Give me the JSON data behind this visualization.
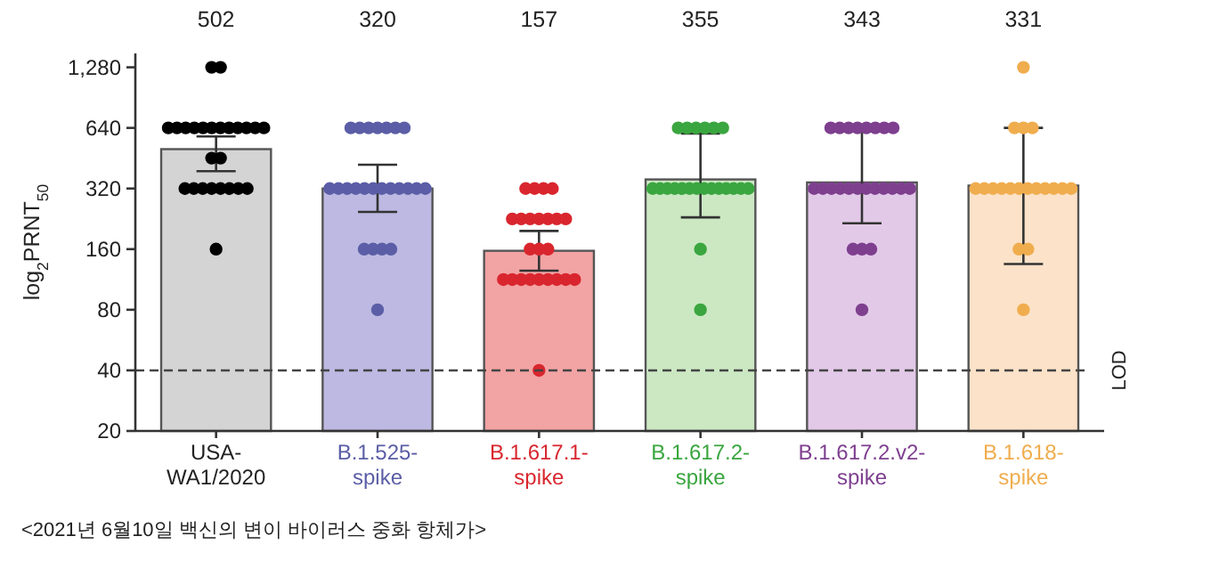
{
  "chart_data": {
    "type": "bar",
    "ylabel": "log$_{2}$PRNT$_{50}$",
    "categories": [
      "USA-WA1/2020",
      "B.1.525-spike",
      "B.1.617.1-spike",
      "B.1.617.2-spike",
      "B.1.617.2.v2-spike",
      "B.1.618-spike"
    ],
    "series": [
      {
        "colors": [
          "#d4d4d4",
          "#bdb9e2",
          "#f2a3a3",
          "#cbe8c3",
          "#e3c9e8",
          "#fbe2c8"
        ],
        "values": [
          502,
          320,
          157,
          355,
          343,
          331
        ],
        "errors": [
          [
            390,
            580
          ],
          [
            245,
            420
          ],
          [
            125,
            197
          ],
          [
            230,
            600
          ],
          [
            215,
            640
          ],
          [
            135,
            640
          ]
        ]
      },
      {
        "type": "scatter",
        "color": "#000000",
        "x": [
          "USA-WA1/2020",
          "USA-WA1/2020",
          "USA-WA1/2020",
          "USA-WA1/2020",
          "USA-WA1/2020",
          "USA-WA1/2020",
          "USA-WA1/2020",
          "USA-WA1/2020",
          "USA-WA1/2020",
          "USA-WA1/2020",
          "USA-WA1/2020",
          "USA-WA1/2020",
          "USA-WA1/2020",
          "USA-WA1/2020",
          "USA-WA1/2020",
          "USA-WA1/2020",
          "USA-WA1/2020",
          "USA-WA1/2020",
          "USA-WA1/2020",
          "USA-WA1/2020",
          "USA-WA1/2020",
          "USA-WA1/2020",
          "USA-WA1/2020",
          "USA-WA1/2020",
          "USA-WA1/2020"
        ],
        "values": [
          1280,
          1280,
          640,
          640,
          640,
          640,
          640,
          640,
          640,
          640,
          640,
          640,
          640,
          640,
          453,
          453,
          320,
          320,
          320,
          320,
          320,
          320,
          320,
          320,
          160
        ]
      },
      {
        "type": "scatter",
        "color": "#5b5ea6",
        "x": [
          "B.1.525-spike",
          "B.1.525-spike",
          "B.1.525-spike",
          "B.1.525-spike",
          "B.1.525-spike",
          "B.1.525-spike",
          "B.1.525-spike",
          "B.1.525-spike",
          "B.1.525-spike",
          "B.1.525-spike",
          "B.1.525-spike",
          "B.1.525-spike",
          "B.1.525-spike",
          "B.1.525-spike",
          "B.1.525-spike",
          "B.1.525-spike",
          "B.1.525-spike",
          "B.1.525-spike",
          "B.1.525-spike",
          "B.1.525-spike",
          "B.1.525-spike",
          "B.1.525-spike",
          "B.1.525-spike",
          "B.1.525-spike"
        ],
        "values": [
          640,
          640,
          640,
          640,
          640,
          640,
          640,
          320,
          320,
          320,
          320,
          320,
          320,
          320,
          320,
          320,
          320,
          320,
          320,
          160,
          160,
          160,
          160,
          80
        ]
      },
      {
        "type": "scatter",
        "color": "#d9262e",
        "x": [
          "B.1.617.1-spike",
          "B.1.617.1-spike",
          "B.1.617.1-spike",
          "B.1.617.1-spike",
          "B.1.617.1-spike",
          "B.1.617.1-spike",
          "B.1.617.1-spike",
          "B.1.617.1-spike",
          "B.1.617.1-spike",
          "B.1.617.1-spike",
          "B.1.617.1-spike",
          "B.1.617.1-spike",
          "B.1.617.1-spike",
          "B.1.617.1-spike",
          "B.1.617.1-spike",
          "B.1.617.1-spike",
          "B.1.617.1-spike",
          "B.1.617.1-spike",
          "B.1.617.1-spike",
          "B.1.617.1-spike",
          "B.1.617.1-spike",
          "B.1.617.1-spike",
          "B.1.617.1-spike",
          "B.1.617.1-spike"
        ],
        "values": [
          320,
          320,
          320,
          320,
          226,
          226,
          226,
          226,
          226,
          226,
          226,
          160,
          160,
          160,
          113,
          113,
          113,
          113,
          113,
          113,
          113,
          113,
          113,
          40
        ]
      },
      {
        "type": "scatter",
        "color": "#3aa63f",
        "x": [
          "B.1.617.2-spike",
          "B.1.617.2-spike",
          "B.1.617.2-spike",
          "B.1.617.2-spike",
          "B.1.617.2-spike",
          "B.1.617.2-spike",
          "B.1.617.2-spike",
          "B.1.617.2-spike",
          "B.1.617.2-spike",
          "B.1.617.2-spike",
          "B.1.617.2-spike",
          "B.1.617.2-spike",
          "B.1.617.2-spike",
          "B.1.617.2-spike",
          "B.1.617.2-spike",
          "B.1.617.2-spike",
          "B.1.617.2-spike",
          "B.1.617.2-spike",
          "B.1.617.2-spike",
          "B.1.617.2-spike",
          "B.1.617.2-spike",
          "B.1.617.2-spike"
        ],
        "values": [
          640,
          640,
          640,
          640,
          640,
          640,
          320,
          320,
          320,
          320,
          320,
          320,
          320,
          320,
          320,
          320,
          320,
          320,
          320,
          320,
          160,
          80
        ]
      },
      {
        "type": "scatter",
        "color": "#7e3f8f",
        "x": [
          "B.1.617.2.v2-spike",
          "B.1.617.2.v2-spike",
          "B.1.617.2.v2-spike",
          "B.1.617.2.v2-spike",
          "B.1.617.2.v2-spike",
          "B.1.617.2.v2-spike",
          "B.1.617.2.v2-spike",
          "B.1.617.2.v2-spike",
          "B.1.617.2.v2-spike",
          "B.1.617.2.v2-spike",
          "B.1.617.2.v2-spike",
          "B.1.617.2.v2-spike",
          "B.1.617.2.v2-spike",
          "B.1.617.2.v2-spike",
          "B.1.617.2.v2-spike",
          "B.1.617.2.v2-spike",
          "B.1.617.2.v2-spike",
          "B.1.617.2.v2-spike",
          "B.1.617.2.v2-spike",
          "B.1.617.2.v2-spike",
          "B.1.617.2.v2-spike",
          "B.1.617.2.v2-spike",
          "B.1.617.2.v2-spike",
          "B.1.617.2.v2-spike"
        ],
        "values": [
          640,
          640,
          640,
          640,
          640,
          640,
          640,
          640,
          320,
          320,
          320,
          320,
          320,
          320,
          320,
          320,
          320,
          320,
          320,
          320,
          160,
          160,
          160,
          80
        ]
      },
      {
        "type": "scatter",
        "color": "#f0ad4e",
        "x": [
          "B.1.618-spike",
          "B.1.618-spike",
          "B.1.618-spike",
          "B.1.618-spike",
          "B.1.618-spike",
          "B.1.618-spike",
          "B.1.618-spike",
          "B.1.618-spike",
          "B.1.618-spike",
          "B.1.618-spike",
          "B.1.618-spike",
          "B.1.618-spike",
          "B.1.618-spike",
          "B.1.618-spike",
          "B.1.618-spike",
          "B.1.618-spike",
          "B.1.618-spike",
          "B.1.618-spike",
          "B.1.618-spike"
        ],
        "values": [
          1280,
          640,
          640,
          640,
          320,
          320,
          320,
          320,
          320,
          320,
          320,
          320,
          320,
          320,
          320,
          320,
          160,
          160,
          80
        ]
      }
    ],
    "log": true,
    "ylim": [
      20,
      1500
    ],
    "yticks": [
      20,
      40,
      80,
      160,
      320,
      640,
      {
        "value": 1280,
        "label": "1,280"
      }
    ],
    "ref_lines": [
      {
        "axis": "y",
        "value": 40,
        "label": "LOD",
        "line_style": "dashed",
        "color": "#444444"
      }
    ],
    "annotations": [
      "502",
      "320",
      "157",
      "355",
      "343",
      "331",
      "<2021년 6월10일 백신의 변이 바이러스 중화 항체가>"
    ],
    "marker": "circle",
    "grid": false
  }
}
